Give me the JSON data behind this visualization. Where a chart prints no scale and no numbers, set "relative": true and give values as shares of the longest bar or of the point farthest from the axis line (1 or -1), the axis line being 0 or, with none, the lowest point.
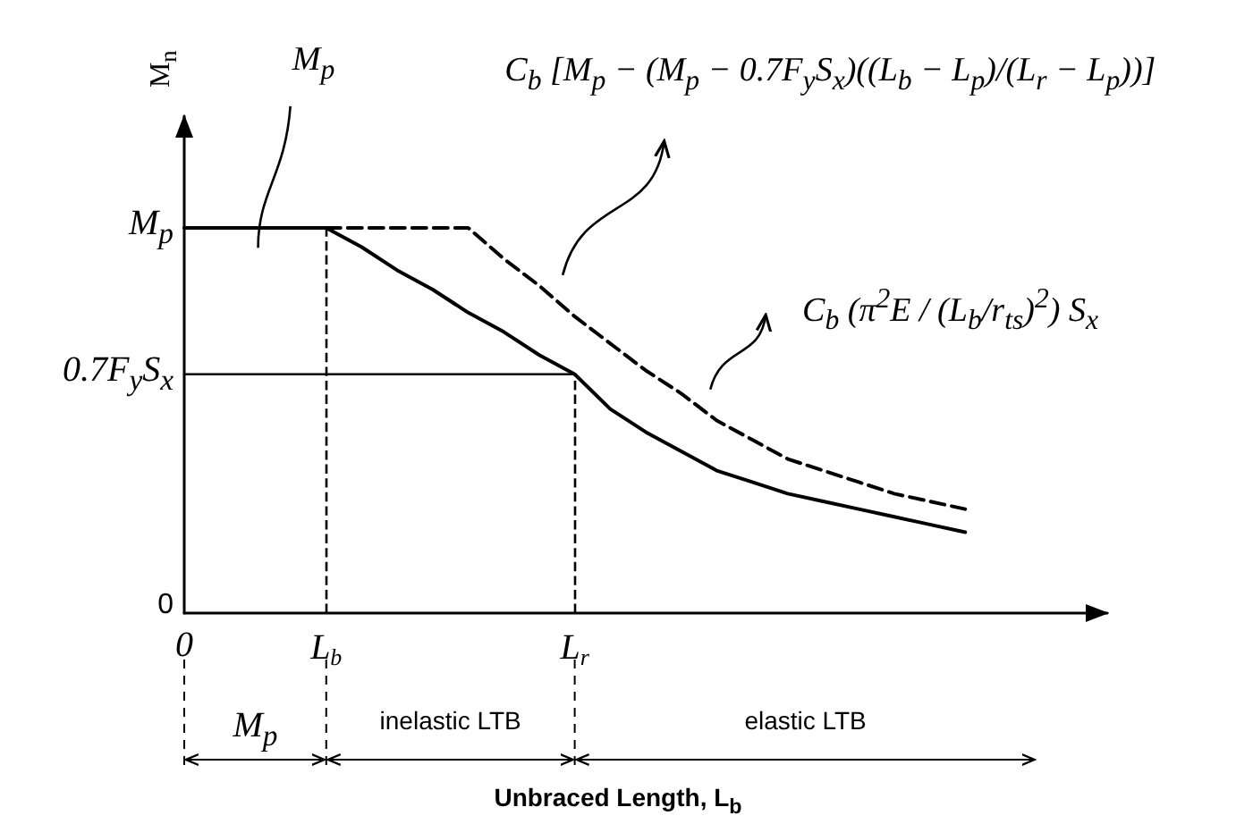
{
  "chart_data": {
    "type": "line",
    "relative": true,
    "xlabel": "Unbraced Length, L$_{b}$",
    "ylabel": "M$_{n}$",
    "marker": "none",
    "categories": [
      "0",
      null,
      null,
      null,
      "L$_{b}$",
      null,
      null,
      null,
      null,
      null,
      null,
      "L$_{r}$",
      null,
      null,
      null,
      null,
      null,
      null,
      null,
      null,
      null,
      null,
      null,
      null,
      null,
      null,
      null
    ],
    "series": [
      {
        "color": "#000000",
        "line_style": "solid",
        "values": [
          1,
          1,
          1,
          1,
          1,
          0.95,
          0.89,
          0.84,
          0.78,
          0.73,
          0.67,
          0.62,
          0.53,
          0.47,
          0.42,
          0.37,
          0.34,
          0.31,
          0.29,
          0.27,
          0.25,
          0.23,
          0.21,
          null,
          null,
          null,
          null
        ]
      },
      {
        "color": "#000000",
        "line_style": "dashed",
        "values": [
          null,
          null,
          null,
          null,
          1,
          1,
          1,
          1,
          1,
          0.92,
          0.85,
          0.77,
          0.7,
          0.63,
          0.57,
          0.5,
          0.45,
          0.4,
          0.37,
          0.34,
          0.31,
          0.29,
          0.27,
          null,
          null,
          null,
          null
        ]
      },
      {
        "color": "#000000",
        "line_style": "solid",
        "values": [
          0.62,
          0.62,
          0.62,
          0.62,
          0.62,
          0.62,
          0.62,
          0.62,
          0.62,
          0.62,
          0.62,
          0.62,
          null,
          null,
          null,
          null,
          null,
          null,
          null,
          null,
          null,
          null,
          null,
          null,
          null,
          null,
          null
        ]
      }
    ],
    "ref_lines": [
      {
        "axis": "x",
        "value": "L$_{b}$",
        "line_style": "dashed"
      },
      {
        "axis": "x",
        "value": "L$_{r}$",
        "line_style": "dashed"
      }
    ],
    "annotations": [
      "0",
      "0.7F$_{y}$S$_{x}$",
      "M$_{p}$",
      "M$_{p}$",
      "C$_{b}$ [M$_{p}$ − (M$_{p}$ − 0.7F$_{y}$S$_{x}$)((L$_{b}$ − L$_{p}$)/(L$_{r}$ − L$_{p}$))]",
      "C$_{b}$ (π$^{2}$E / (L$_{b}$/r$_{ts}$)$^{2}$) S$_{x}$",
      "M$_{p}$",
      "inelastic LTB",
      "elastic LTB"
    ]
  }
}
